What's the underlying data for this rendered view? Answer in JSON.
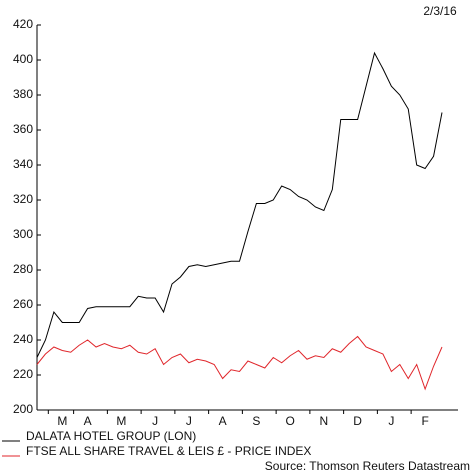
{
  "chart_data": {
    "type": "line",
    "date": "2/3/16",
    "source": "Source: Thomson Reuters Datastream",
    "categories": [
      null,
      null,
      null,
      "M",
      null,
      null,
      "A",
      null,
      null,
      null,
      "M",
      null,
      null,
      null,
      "J",
      null,
      null,
      null,
      "J",
      null,
      null,
      null,
      "A",
      null,
      null,
      null,
      "S",
      null,
      null,
      null,
      "O",
      null,
      null,
      null,
      "N",
      null,
      null,
      null,
      "D",
      null,
      null,
      null,
      "J",
      null,
      null,
      null,
      "F",
      null,
      null
    ],
    "series": [
      {
        "name": "DALATA HOTEL GROUP (LON)",
        "color": "#000000",
        "values": [
          230,
          240,
          256,
          250,
          250,
          250,
          258,
          259,
          259,
          259,
          259,
          259,
          265,
          264,
          264,
          256,
          272,
          276,
          282,
          283,
          282,
          283,
          284,
          285,
          285,
          302,
          318,
          318,
          320,
          328,
          326,
          322,
          320,
          316,
          314,
          326,
          366,
          366,
          366,
          385,
          404,
          395,
          385,
          380,
          372,
          340,
          338,
          345,
          370
        ]
      },
      {
        "name": "FTSE ALL SHARE TRAVEL & LEIS £ - PRICE INDEX",
        "color": "#e0262b",
        "values": [
          226,
          232,
          236,
          234,
          233,
          237,
          240,
          236,
          238,
          236,
          235,
          237,
          233,
          232,
          235,
          226,
          230,
          232,
          227,
          229,
          228,
          226,
          218,
          223,
          222,
          228,
          226,
          224,
          230,
          227,
          231,
          234,
          229,
          231,
          230,
          235,
          233,
          238,
          242,
          236,
          234,
          232,
          222,
          226,
          218,
          226,
          212,
          225,
          236
        ]
      }
    ],
    "ylim": [
      200,
      420
    ],
    "yticks": [
      200,
      220,
      240,
      260,
      280,
      300,
      320,
      340,
      360,
      380,
      400,
      420
    ]
  }
}
